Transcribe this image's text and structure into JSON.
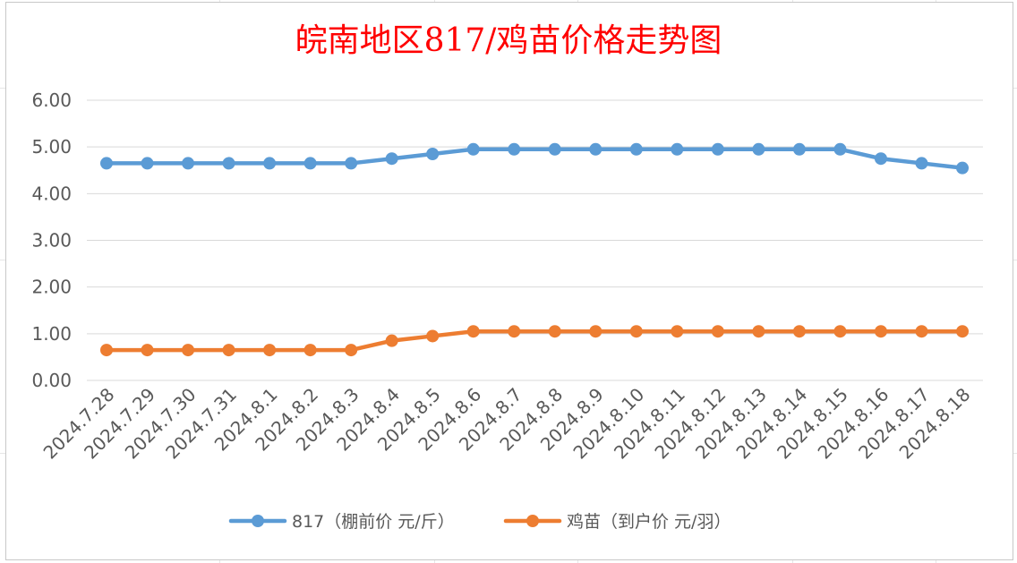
{
  "chart_data": {
    "type": "line",
    "title": "皖南地区817/鸡苗价格走势图",
    "xlabel": "",
    "ylabel": "",
    "ylim": [
      0,
      6
    ],
    "yticks": [
      "0.00",
      "1.00",
      "2.00",
      "3.00",
      "4.00",
      "5.00",
      "6.00"
    ],
    "grid": true,
    "legend_position": "bottom",
    "categories": [
      "2024.7.28",
      "2024.7.29",
      "2024.7.30",
      "2024.7.31",
      "2024.8.1",
      "2024.8.2",
      "2024.8.3",
      "2024.8.4",
      "2024.8.5",
      "2024.8.6",
      "2024.8.7",
      "2024.8.8",
      "2024.8.9",
      "2024.8.10",
      "2024.8.11",
      "2024.8.12",
      "2024.8.13",
      "2024.8.14",
      "2024.8.15",
      "2024.8.16",
      "2024.8.17",
      "2024.8.18"
    ],
    "series": [
      {
        "name": "817（棚前价 元/斤）",
        "color": "#5b9bd5",
        "values": [
          4.65,
          4.65,
          4.65,
          4.65,
          4.65,
          4.65,
          4.65,
          4.75,
          4.85,
          4.95,
          4.95,
          4.95,
          4.95,
          4.95,
          4.95,
          4.95,
          4.95,
          4.95,
          4.95,
          4.75,
          4.65,
          4.55
        ]
      },
      {
        "name": "鸡苗（到户价 元/羽）",
        "color": "#ed7d31",
        "values": [
          0.65,
          0.65,
          0.65,
          0.65,
          0.65,
          0.65,
          0.65,
          0.85,
          0.95,
          1.05,
          1.05,
          1.05,
          1.05,
          1.05,
          1.05,
          1.05,
          1.05,
          1.05,
          1.05,
          1.05,
          1.05,
          1.05
        ]
      }
    ]
  }
}
